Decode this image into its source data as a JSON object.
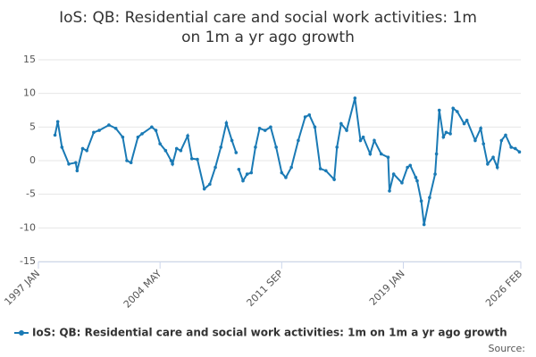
{
  "chart_data": {
    "type": "line",
    "title": "IoS: QB: Residential care and social work activities: 1m on 1m a yr ago growth",
    "source_label": "Source:",
    "x": [
      "1998 JAN",
      "1998 MAR",
      "1998 JUN",
      "1998 NOV",
      "1999 APR",
      "1999 MAY",
      "1999 SEP",
      "1999 DEC",
      "2000 MAY",
      "2000 SEP",
      "2001 APR",
      "2001 SEP",
      "2002 FEB",
      "2002 MAY",
      "2002 AUG",
      "2003 JAN",
      "2003 APR",
      "2003 NOV",
      "2004 FEB",
      "2004 MAY",
      "2004 SEP",
      "2005 JAN",
      "2005 FEB",
      "2005 MAY",
      "2005 AUG",
      "2006 JAN",
      "2006 APR",
      "2006 AUG",
      "2007 JAN",
      "2007 MAY",
      "2007 SEP",
      "2008 JAN",
      "2008 MAY",
      "2008 SEP",
      "2008 DEC",
      "2009 JAN",
      "2009 FEB",
      "2009 MAY",
      "2009 AUG",
      "2009 NOV",
      "2010 FEB",
      "2010 MAY",
      "2010 SEP",
      "2011 JAN",
      "2011 MAY",
      "2011 SEP",
      "2011 DEC",
      "2012 APR",
      "2012 SEP",
      "2013 FEB",
      "2013 MAY",
      "2013 SEP",
      "2014 JAN",
      "2014 MAY",
      "2014 NOV",
      "2015 JAN",
      "2015 APR",
      "2015 AUG",
      "2016 FEB",
      "2016 JUN",
      "2016 AUG",
      "2017 JAN",
      "2017 APR",
      "2017 SEP",
      "2018 FEB",
      "2018 MAR",
      "2018 JUN",
      "2018 DEC",
      "2019 APR",
      "2019 JUN",
      "2019 OCT",
      "2019 NOV",
      "2020 FEB",
      "2020 APR",
      "2020 AUG",
      "2020 DEC",
      "2021 JAN",
      "2021 MAR",
      "2021 JUN",
      "2021 AUG",
      "2021 NOV",
      "2022 JAN",
      "2022 APR",
      "2022 SEP",
      "2022 NOV",
      "2023 MAY",
      "2023 SEP",
      "2023 NOV",
      "2024 FEB",
      "2024 JUN",
      "2024 SEP",
      "2024 DEC",
      "2025 MAR",
      "2025 JUL",
      "2025 OCT",
      "2026 JAN"
    ],
    "series": [
      {
        "name": "IoS: QB: Residential care and social work activities: 1m on 1m a yr ago growth",
        "color": "#1a7ab5",
        "values": [
          3.8,
          5.8,
          2,
          -0.5,
          -0.3,
          -1.5,
          1.8,
          1.5,
          4.2,
          4.5,
          5.3,
          4.8,
          3.5,
          0,
          -0.3,
          3.5,
          4,
          5,
          4.5,
          2.5,
          1.5,
          0,
          -0.5,
          1.8,
          1.5,
          3.7,
          0.3,
          0.2,
          -4.2,
          -3.5,
          -1,
          2,
          5.6,
          3,
          1.2,
          null,
          -1.3,
          -3,
          -2,
          -1.8,
          2,
          4.8,
          4.5,
          5,
          2,
          -1.8,
          -2.5,
          -1,
          3,
          6.5,
          6.8,
          5,
          -1.2,
          -1.5,
          -2.8,
          2,
          5.5,
          4.5,
          9.3,
          3,
          3.5,
          1,
          3,
          1,
          0.5,
          -4.5,
          -2,
          -3.3,
          -1,
          -0.7,
          -2.5,
          -3,
          -6,
          -9.5,
          -5.5,
          -2,
          1,
          7.5,
          3.5,
          4.2,
          4,
          7.8,
          7.3,
          5.5,
          6,
          3,
          4.8,
          2.5,
          -0.5,
          0.5,
          -1,
          3,
          3.8,
          2,
          1.8,
          1.3
        ]
      }
    ],
    "xlim": [
      "1997 JAN",
      "2026 FEB"
    ],
    "xticks": [
      "1997 JAN",
      "2004 MAY",
      "2011 SEP",
      "2019 JAN",
      "2026 FEB"
    ],
    "ylim": [
      -15,
      15
    ],
    "yticks": [
      -15,
      -10,
      -5,
      0,
      5,
      10,
      15
    ],
    "grid": true
  }
}
